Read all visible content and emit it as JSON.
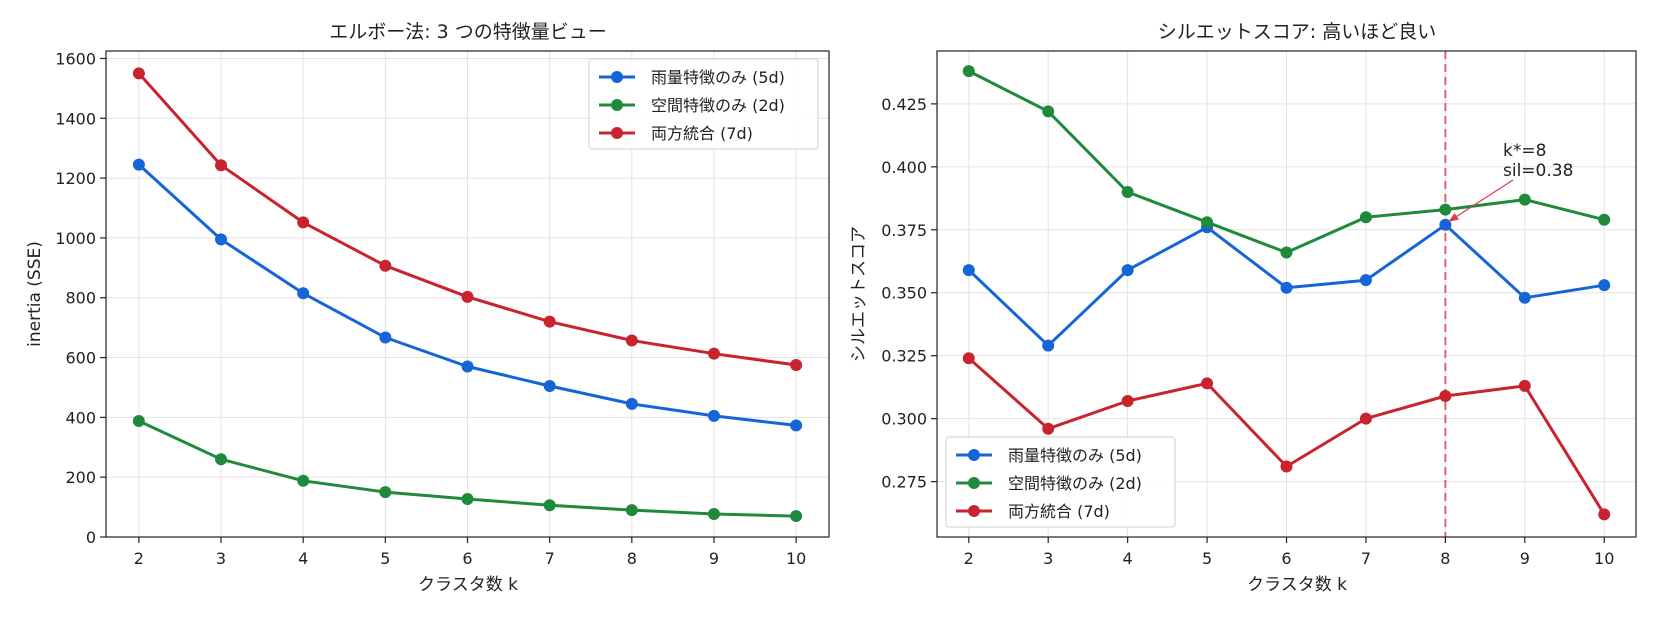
{
  "chart_data": [
    {
      "type": "line",
      "title": "エルボー法: 3 つの特徴量ビュー",
      "xlabel": "クラスタ数 k",
      "ylabel": "inertia (SSE)",
      "x": [
        2,
        3,
        4,
        5,
        6,
        7,
        8,
        9,
        10
      ],
      "xlim": [
        1.6,
        10.4
      ],
      "ylim": [
        0,
        1625
      ],
      "xticks": [
        "2",
        "3",
        "4",
        "5",
        "6",
        "7",
        "8",
        "9",
        "10"
      ],
      "yticks": [
        "0",
        "200",
        "400",
        "600",
        "800",
        "1000",
        "1200",
        "1400",
        "1600"
      ],
      "ytick_values": [
        0,
        200,
        400,
        600,
        800,
        1000,
        1200,
        1400,
        1600
      ],
      "grid": true,
      "legend_position": "top-right",
      "series": [
        {
          "name": "雨量特徴のみ (5d)",
          "color": "#1565d8",
          "values": [
            1245,
            995,
            815,
            667,
            570,
            505,
            445,
            405,
            373
          ]
        },
        {
          "name": "空間特徴のみ (2d)",
          "color": "#1f8a3c",
          "values": [
            388,
            260,
            188,
            150,
            127,
            106,
            90,
            77,
            70
          ]
        },
        {
          "name": "両方統合 (7d)",
          "color": "#c9232f",
          "values": [
            1550,
            1243,
            1052,
            907,
            803,
            720,
            657,
            613,
            575
          ]
        }
      ]
    },
    {
      "type": "line",
      "title": "シルエットスコア: 高いほど良い",
      "xlabel": "クラスタ数 k",
      "ylabel": "シルエットスコア",
      "x": [
        2,
        3,
        4,
        5,
        6,
        7,
        8,
        9,
        10
      ],
      "xlim": [
        1.6,
        10.4
      ],
      "ylim": [
        0.253,
        0.446
      ],
      "xticks": [
        "2",
        "3",
        "4",
        "5",
        "6",
        "7",
        "8",
        "9",
        "10"
      ],
      "yticks": [
        "0.275",
        "0.300",
        "0.325",
        "0.350",
        "0.375",
        "0.400",
        "0.425"
      ],
      "ytick_values": [
        0.275,
        0.3,
        0.325,
        0.35,
        0.375,
        0.4,
        0.425
      ],
      "grid": true,
      "legend_position": "bottom-left",
      "reference_line": {
        "x": 8,
        "color": "#e06470"
      },
      "annotation": {
        "lines": [
          "k*=8",
          "sil=0.38"
        ],
        "target_x": 8,
        "target_y": 0.377,
        "color": "#d9404e"
      },
      "series": [
        {
          "name": "雨量特徴のみ (5d)",
          "color": "#1565d8",
          "values": [
            0.359,
            0.329,
            0.359,
            0.376,
            0.352,
            0.355,
            0.377,
            0.348,
            0.353
          ]
        },
        {
          "name": "空間特徴のみ (2d)",
          "color": "#1f8a3c",
          "values": [
            0.438,
            0.422,
            0.39,
            0.378,
            0.366,
            0.38,
            0.383,
            0.387,
            0.379
          ]
        },
        {
          "name": "両方統合 (7d)",
          "color": "#c9232f",
          "values": [
            0.324,
            0.296,
            0.307,
            0.314,
            0.281,
            0.3,
            0.309,
            0.313,
            0.262
          ]
        }
      ]
    }
  ]
}
